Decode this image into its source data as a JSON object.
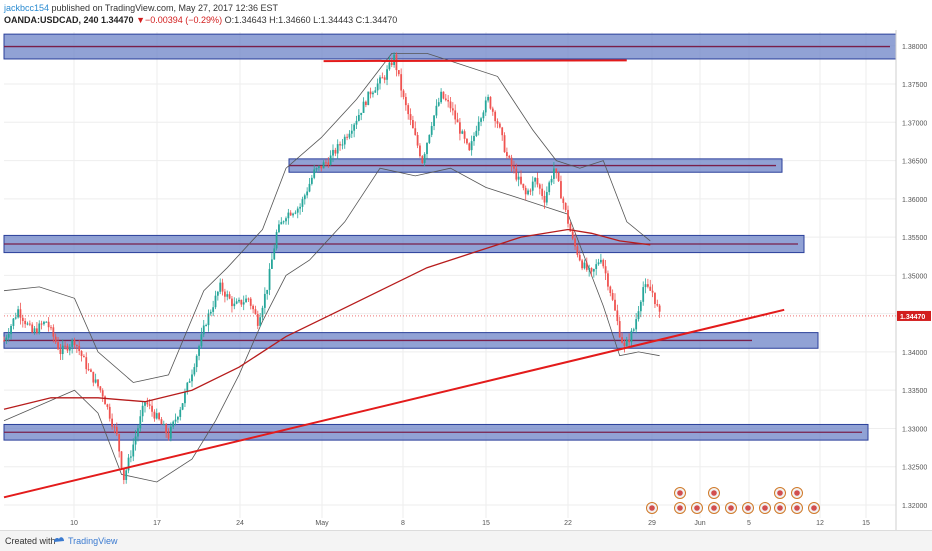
{
  "header": {
    "author": "jackbcc154",
    "published": " published on TradingView.com, May 27, 2017 12:36 EST",
    "symbol": "OANDA:USDCAD, 240",
    "last": "1.34470",
    "change": "▼−0.00394 (−0.29%)",
    "ohlc": "O:1.34643 H:1.34660 L:1.34443 C:1.34470"
  },
  "footer": {
    "created_with": "Created with",
    "brand": "TradingView"
  },
  "colors": {
    "bull": "#26a69a",
    "bear": "#ef5350",
    "zone_fill": "#6c83c7",
    "zone_stroke": "#2a3f9a",
    "trend": "#e31b1b",
    "ma": "#b71c1c",
    "band": "#555555"
  },
  "chart_data": {
    "type": "candlestick",
    "symbol": "OANDA:USDCAD",
    "timeframe": "240",
    "ylim": [
      1.3183,
      1.3818
    ],
    "y_ticks": [
      "1.38000",
      "1.37500",
      "1.37000",
      "1.36500",
      "1.36000",
      "1.35500",
      "1.35000",
      "1.34500",
      "1.34000",
      "1.33500",
      "1.33000",
      "1.32500",
      "1.32000"
    ],
    "x_ticks": [
      "10",
      "17",
      "24",
      "May",
      "8",
      "15",
      "22",
      "29",
      "Jun",
      "5",
      "12",
      "15"
    ],
    "last_price_label": "1.34470",
    "close_path": [
      [
        0,
        1.3415
      ],
      [
        6,
        1.3455
      ],
      [
        12,
        1.3425
      ],
      [
        18,
        1.344
      ],
      [
        24,
        1.34
      ],
      [
        30,
        1.3415
      ],
      [
        36,
        1.3375
      ],
      [
        42,
        1.3345
      ],
      [
        48,
        1.329
      ],
      [
        51,
        1.3235
      ],
      [
        56,
        1.329
      ],
      [
        60,
        1.3335
      ],
      [
        66,
        1.331
      ],
      [
        70,
        1.329
      ],
      [
        76,
        1.3335
      ],
      [
        80,
        1.3375
      ],
      [
        86,
        1.344
      ],
      [
        92,
        1.3485
      ],
      [
        98,
        1.346
      ],
      [
        104,
        1.347
      ],
      [
        108,
        1.344
      ],
      [
        112,
        1.3485
      ],
      [
        116,
        1.3555
      ],
      [
        120,
        1.358
      ],
      [
        126,
        1.359
      ],
      [
        132,
        1.3635
      ],
      [
        138,
        1.365
      ],
      [
        144,
        1.3675
      ],
      [
        150,
        1.3705
      ],
      [
        156,
        1.374
      ],
      [
        162,
        1.376
      ],
      [
        166,
        1.3785
      ],
      [
        170,
        1.373
      ],
      [
        174,
        1.369
      ],
      [
        178,
        1.365
      ],
      [
        182,
        1.37
      ],
      [
        186,
        1.3735
      ],
      [
        190,
        1.372
      ],
      [
        194,
        1.369
      ],
      [
        198,
        1.366
      ],
      [
        202,
        1.3705
      ],
      [
        206,
        1.373
      ],
      [
        210,
        1.37
      ],
      [
        214,
        1.3655
      ],
      [
        218,
        1.363
      ],
      [
        222,
        1.3605
      ],
      [
        226,
        1.3625
      ],
      [
        230,
        1.36
      ],
      [
        234,
        1.364
      ],
      [
        238,
        1.3595
      ],
      [
        242,
        1.3545
      ],
      [
        246,
        1.3515
      ],
      [
        250,
        1.35
      ],
      [
        254,
        1.3525
      ],
      [
        258,
        1.348
      ],
      [
        262,
        1.3425
      ],
      [
        264,
        1.3405
      ],
      [
        268,
        1.343
      ],
      [
        272,
        1.3485
      ],
      [
        276,
        1.3478
      ],
      [
        279,
        1.3447
      ]
    ],
    "ma_path": [
      [
        0,
        1.3325
      ],
      [
        20,
        1.334
      ],
      [
        40,
        1.334
      ],
      [
        60,
        1.3335
      ],
      [
        80,
        1.335
      ],
      [
        100,
        1.338
      ],
      [
        120,
        1.342
      ],
      [
        140,
        1.345
      ],
      [
        160,
        1.348
      ],
      [
        180,
        1.351
      ],
      [
        200,
        1.353
      ],
      [
        220,
        1.355
      ],
      [
        240,
        1.356
      ],
      [
        250,
        1.3555
      ],
      [
        262,
        1.3545
      ],
      [
        275,
        1.354
      ]
    ],
    "band_upper_path": [
      [
        0,
        1.348
      ],
      [
        15,
        1.3485
      ],
      [
        30,
        1.347
      ],
      [
        40,
        1.34
      ],
      [
        55,
        1.336
      ],
      [
        70,
        1.337
      ],
      [
        85,
        1.348
      ],
      [
        95,
        1.351
      ],
      [
        110,
        1.356
      ],
      [
        120,
        1.364
      ],
      [
        135,
        1.368
      ],
      [
        150,
        1.373
      ],
      [
        165,
        1.379
      ],
      [
        180,
        1.379
      ],
      [
        195,
        1.3775
      ],
      [
        210,
        1.376
      ],
      [
        225,
        1.369
      ],
      [
        235,
        1.365
      ],
      [
        245,
        1.364
      ],
      [
        255,
        1.365
      ],
      [
        265,
        1.357
      ],
      [
        275,
        1.3545
      ]
    ],
    "band_lower_path": [
      [
        0,
        1.331
      ],
      [
        15,
        1.333
      ],
      [
        30,
        1.335
      ],
      [
        40,
        1.332
      ],
      [
        50,
        1.324
      ],
      [
        65,
        1.323
      ],
      [
        80,
        1.326
      ],
      [
        90,
        1.331
      ],
      [
        100,
        1.337
      ],
      [
        110,
        1.344
      ],
      [
        120,
        1.35
      ],
      [
        130,
        1.352
      ],
      [
        145,
        1.357
      ],
      [
        160,
        1.364
      ],
      [
        175,
        1.363
      ],
      [
        190,
        1.364
      ],
      [
        205,
        1.3615
      ],
      [
        220,
        1.36
      ],
      [
        230,
        1.359
      ],
      [
        240,
        1.358
      ],
      [
        255,
        1.346
      ],
      [
        262,
        1.3395
      ],
      [
        270,
        1.34
      ],
      [
        279,
        1.3395
      ]
    ],
    "zones": [
      {
        "low": 1.3788,
        "high": 1.381
      },
      {
        "low": 1.364,
        "high": 1.3647
      },
      {
        "low": 1.3535,
        "high": 1.3547
      },
      {
        "low": 1.341,
        "high": 1.342
      },
      {
        "low": 1.329,
        "high": 1.33
      }
    ],
    "trendlines": [
      {
        "x1": 0,
        "y1": 1.321,
        "x2": 332,
        "y2": 1.3455
      },
      {
        "x1": 136,
        "y1": 1.378,
        "x2": 265,
        "y2": 1.3781
      }
    ]
  }
}
